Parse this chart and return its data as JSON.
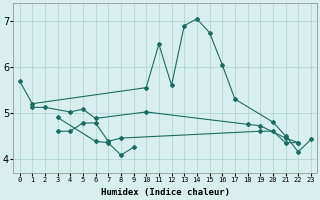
{
  "xlabel": "Humidex (Indice chaleur)",
  "background_color": "#d8f0ed",
  "grid_color": "#a8d4ce",
  "line_color": "#1a6b63",
  "xlim": [
    -0.5,
    23.5
  ],
  "ylim": [
    3.7,
    7.4
  ],
  "yticks": [
    4,
    5,
    6,
    7
  ],
  "xtick_labels": [
    "0",
    "1",
    "2",
    "3",
    "4",
    "5",
    "6",
    "7",
    "8",
    "9",
    "10",
    "11",
    "12",
    "13",
    "14",
    "15",
    "16",
    "17",
    "18",
    "19",
    "20",
    "21",
    "22",
    "23"
  ],
  "series": [
    {
      "x": [
        0,
        1,
        10,
        11,
        12,
        13,
        14,
        15,
        16,
        17,
        20,
        21,
        22,
        23
      ],
      "y": [
        5.7,
        5.2,
        5.55,
        6.5,
        5.6,
        6.9,
        7.05,
        6.75,
        6.05,
        5.3,
        4.8,
        4.5,
        4.15,
        4.42
      ]
    },
    {
      "x": [
        1,
        2,
        4,
        5,
        6,
        10,
        18,
        19,
        21,
        22
      ],
      "y": [
        5.12,
        5.12,
        5.02,
        5.08,
        4.88,
        5.02,
        4.75,
        4.72,
        4.45,
        4.35
      ]
    },
    {
      "x": [
        3,
        4,
        5,
        6,
        7,
        8,
        19,
        20,
        21,
        22
      ],
      "y": [
        4.6,
        4.6,
        4.78,
        4.78,
        4.38,
        4.45,
        4.6,
        4.6,
        4.35,
        4.35
      ]
    },
    {
      "x": [
        3,
        6,
        7,
        8,
        9
      ],
      "y": [
        4.9,
        4.38,
        4.35,
        4.08,
        4.25
      ]
    }
  ]
}
